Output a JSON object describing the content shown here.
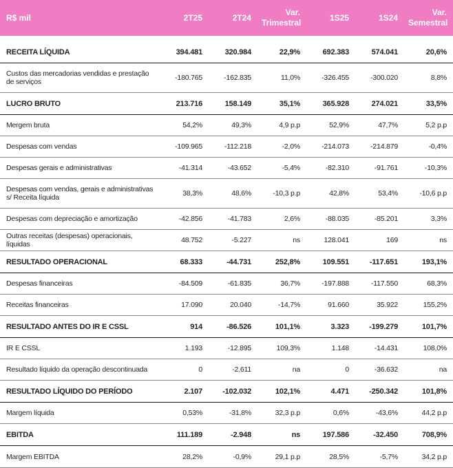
{
  "header": {
    "label": "R$ mil",
    "columns": [
      {
        "line1": "2T25",
        "line2": ""
      },
      {
        "line1": "2T24",
        "line2": ""
      },
      {
        "line1": "Var.",
        "line2": "Trimestral"
      },
      {
        "line1": "1S25",
        "line2": ""
      },
      {
        "line1": "1S24",
        "line2": ""
      },
      {
        "line1": "Var.",
        "line2": "Semestral"
      }
    ]
  },
  "rows": [
    {
      "label": "RECEITA LÍQUIDA",
      "bold": true,
      "values": [
        "394.481",
        "320.984",
        "22,9%",
        "692.383",
        "574.041",
        "20,6%"
      ]
    },
    {
      "label": "Custos das mercadorias vendidas e prestação de serviços",
      "bold": false,
      "values": [
        "-180.765",
        "-162.835",
        "11,0%",
        "-326.455",
        "-300.020",
        "8,8%"
      ]
    },
    {
      "label": "LUCRO BRUTO",
      "bold": true,
      "values": [
        "213.716",
        "158.149",
        "35,1%",
        "365.928",
        "274.021",
        "33,5%"
      ]
    },
    {
      "label": "Mergem bruta",
      "bold": false,
      "values": [
        "54,2%",
        "49,3%",
        "4,9 p.p",
        "52,9%",
        "47,7%",
        "5,2 p.p"
      ]
    },
    {
      "label": "Despesas com vendas",
      "bold": false,
      "values": [
        "-109.965",
        "-112.218",
        "-2,0%",
        "-214.073",
        "-214.879",
        "-0,4%"
      ]
    },
    {
      "label": "Despesas gerais e administrativas",
      "bold": false,
      "values": [
        "-41.314",
        "-43.652",
        "-5,4%",
        "-82.310",
        "-91.761",
        "-10,3%"
      ]
    },
    {
      "label": "Despesas com vendas, gerais e administrativas s/ Receita líquida",
      "bold": false,
      "values": [
        "38,3%",
        "48,6%",
        "-10,3 p.p",
        "42,8%",
        "53,4%",
        "-10,6 p.p"
      ]
    },
    {
      "label": "Despesas com depreciação e amortização",
      "bold": false,
      "values": [
        "-42.856",
        "-41.783",
        "2,6%",
        "-88.035",
        "-85.201",
        "3,3%"
      ]
    },
    {
      "label": "Outras receitas (despesas) operacionais, líquidas",
      "bold": false,
      "values": [
        "48.752",
        "-5.227",
        "ns",
        "128.041",
        "169",
        "ns"
      ]
    },
    {
      "label": "RESULTADO OPERACIONAL",
      "bold": true,
      "values": [
        "68.333",
        "-44.731",
        "252,8%",
        "109.551",
        "-117.651",
        "193,1%"
      ]
    },
    {
      "label": "Despesas financeiras",
      "bold": false,
      "values": [
        "-84.509",
        "-61.835",
        "36,7%",
        "-197.888",
        "-117.550",
        "68,3%"
      ]
    },
    {
      "label": "Receitas financeiras",
      "bold": false,
      "values": [
        "17.090",
        "20.040",
        "-14,7%",
        "91.660",
        "35.922",
        "155,2%"
      ]
    },
    {
      "label": "RESULTADO ANTES DO IR E CSSL",
      "bold": true,
      "values": [
        "914",
        "-86.526",
        "101,1%",
        "3.323",
        "-199.279",
        "101,7%"
      ]
    },
    {
      "label": "IR E CSSL",
      "bold": false,
      "values": [
        "1.193",
        "-12.895",
        "109,3%",
        "1.148",
        "-14.431",
        "108,0%"
      ]
    },
    {
      "label": "Resultado líquido da operação descontinuada",
      "bold": false,
      "values": [
        "0",
        "-2.611",
        "na",
        "0",
        "-36.632",
        "na"
      ]
    },
    {
      "label": "RESULTADO LÍQUIDO DO PERÍODO",
      "bold": true,
      "values": [
        "2.107",
        "-102.032",
        "102,1%",
        "4.471",
        "-250.342",
        "101,8%"
      ]
    },
    {
      "label": "Margem líquida",
      "bold": false,
      "values": [
        "0,53%",
        "-31,8%",
        "32,3 p.p",
        "0,6%",
        "-43,6%",
        "44,2 p.p"
      ]
    },
    {
      "label": "EBITDA",
      "bold": true,
      "values": [
        "111.189",
        "-2.948",
        "ns",
        "197.586",
        "-32.450",
        "708,9%"
      ]
    },
    {
      "label": "Margem EBITDA",
      "bold": false,
      "values": [
        "28,2%",
        "-0,9%",
        "29,1 p.p",
        "28,5%",
        "-5,7%",
        "34,2 p.p"
      ]
    }
  ]
}
